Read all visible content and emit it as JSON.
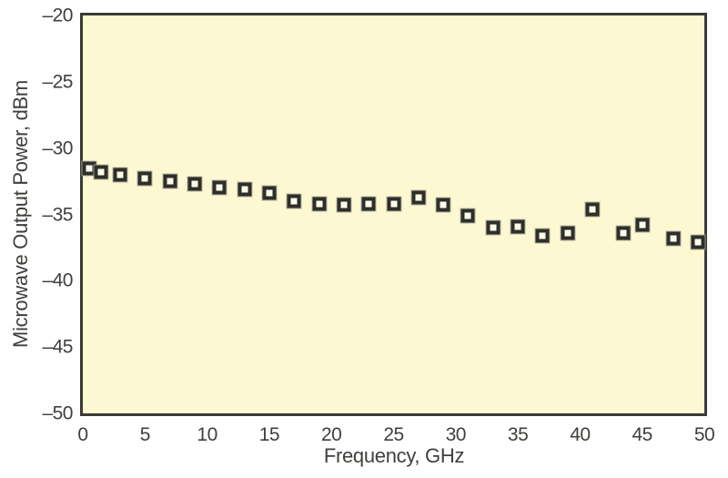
{
  "chart_data": {
    "type": "scatter",
    "title": "",
    "xlabel": "Frequency, GHz",
    "ylabel": "Microwave Output Power, dBm",
    "xlim": [
      0,
      50
    ],
    "ylim": [
      -50,
      -20
    ],
    "grid": false,
    "legend": false,
    "marker": "open-square",
    "x_ticks": [
      {
        "v": 0,
        "label": "0"
      },
      {
        "v": 5,
        "label": "5"
      },
      {
        "v": 10,
        "label": "10"
      },
      {
        "v": 15,
        "label": "15"
      },
      {
        "v": 20,
        "label": "20"
      },
      {
        "v": 25,
        "label": "25"
      },
      {
        "v": 30,
        "label": "30"
      },
      {
        "v": 35,
        "label": "35"
      },
      {
        "v": 40,
        "label": "40"
      },
      {
        "v": 45,
        "label": "45"
      },
      {
        "v": 50,
        "label": "50"
      }
    ],
    "y_ticks": [
      {
        "v": -20,
        "label": "–20"
      },
      {
        "v": -25,
        "label": "–25"
      },
      {
        "v": -30,
        "label": "–30"
      },
      {
        "v": -35,
        "label": "–35"
      },
      {
        "v": -40,
        "label": "–40"
      },
      {
        "v": -45,
        "label": "–45"
      },
      {
        "v": -50,
        "label": "–50"
      }
    ],
    "points": [
      {
        "x": 0.5,
        "y": -31.5
      },
      {
        "x": 1.5,
        "y": -31.8
      },
      {
        "x": 3,
        "y": -32.0
      },
      {
        "x": 5,
        "y": -32.3
      },
      {
        "x": 7,
        "y": -32.5
      },
      {
        "x": 9,
        "y": -32.7
      },
      {
        "x": 11,
        "y": -33.0
      },
      {
        "x": 13,
        "y": -33.1
      },
      {
        "x": 15,
        "y": -33.4
      },
      {
        "x": 17,
        "y": -34.0
      },
      {
        "x": 19,
        "y": -34.2
      },
      {
        "x": 21,
        "y": -34.3
      },
      {
        "x": 23,
        "y": -34.2
      },
      {
        "x": 25,
        "y": -34.2
      },
      {
        "x": 27,
        "y": -33.7
      },
      {
        "x": 29,
        "y": -34.3
      },
      {
        "x": 31,
        "y": -35.1
      },
      {
        "x": 33,
        "y": -36.0
      },
      {
        "x": 35,
        "y": -35.9
      },
      {
        "x": 37,
        "y": -36.6
      },
      {
        "x": 39,
        "y": -36.4
      },
      {
        "x": 41,
        "y": -34.6
      },
      {
        "x": 43.5,
        "y": -36.4
      },
      {
        "x": 45,
        "y": -35.8
      },
      {
        "x": 47.5,
        "y": -36.8
      },
      {
        "x": 49.5,
        "y": -37.1
      }
    ]
  },
  "style": {
    "plot_bg": "#fbf8d2",
    "axis_color": "#3a3a36",
    "text_color": "#3f3f3b",
    "marker_border": "#2e2e2a",
    "marker_fill": "#fffdea",
    "marker_halo": "#a8a896",
    "page_bg": "#ffffff"
  }
}
